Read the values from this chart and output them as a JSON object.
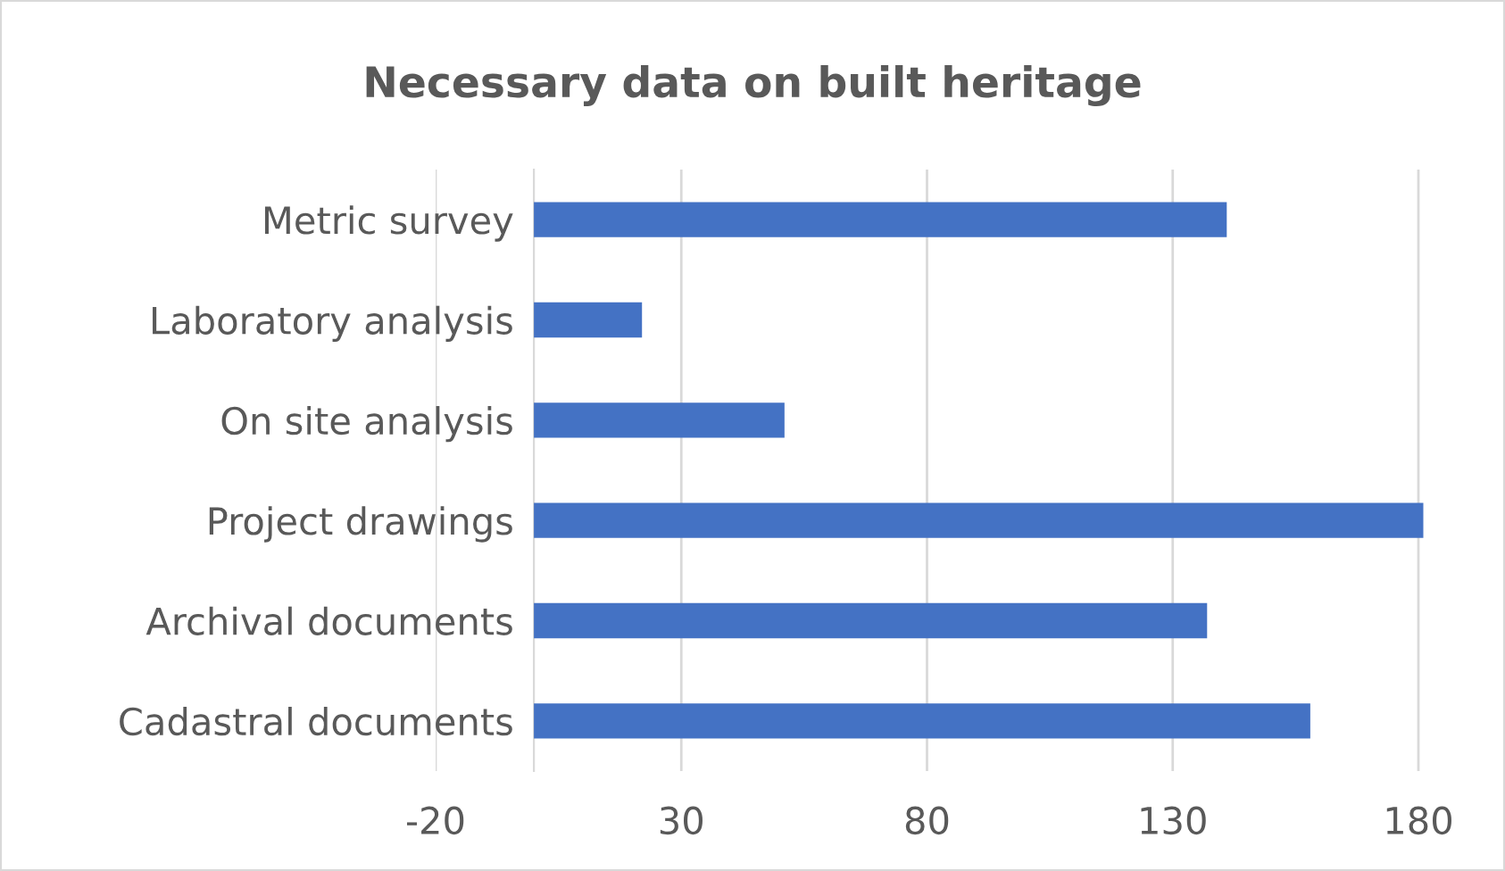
{
  "chart_data": {
    "type": "bar",
    "orientation": "horizontal",
    "title": "Necessary data on built heritage",
    "categories": [
      "Metric survey",
      "Laboratory analysis",
      "On site analysis",
      "Project drawings",
      "Archival documents",
      "Cadastral documents"
    ],
    "values": [
      141,
      22,
      51,
      181,
      137,
      158
    ],
    "color": "#4472c4",
    "xlim": [
      -20,
      182
    ],
    "xticks": [
      -20,
      30,
      80,
      130,
      180
    ],
    "grid": "x",
    "legend": false
  }
}
